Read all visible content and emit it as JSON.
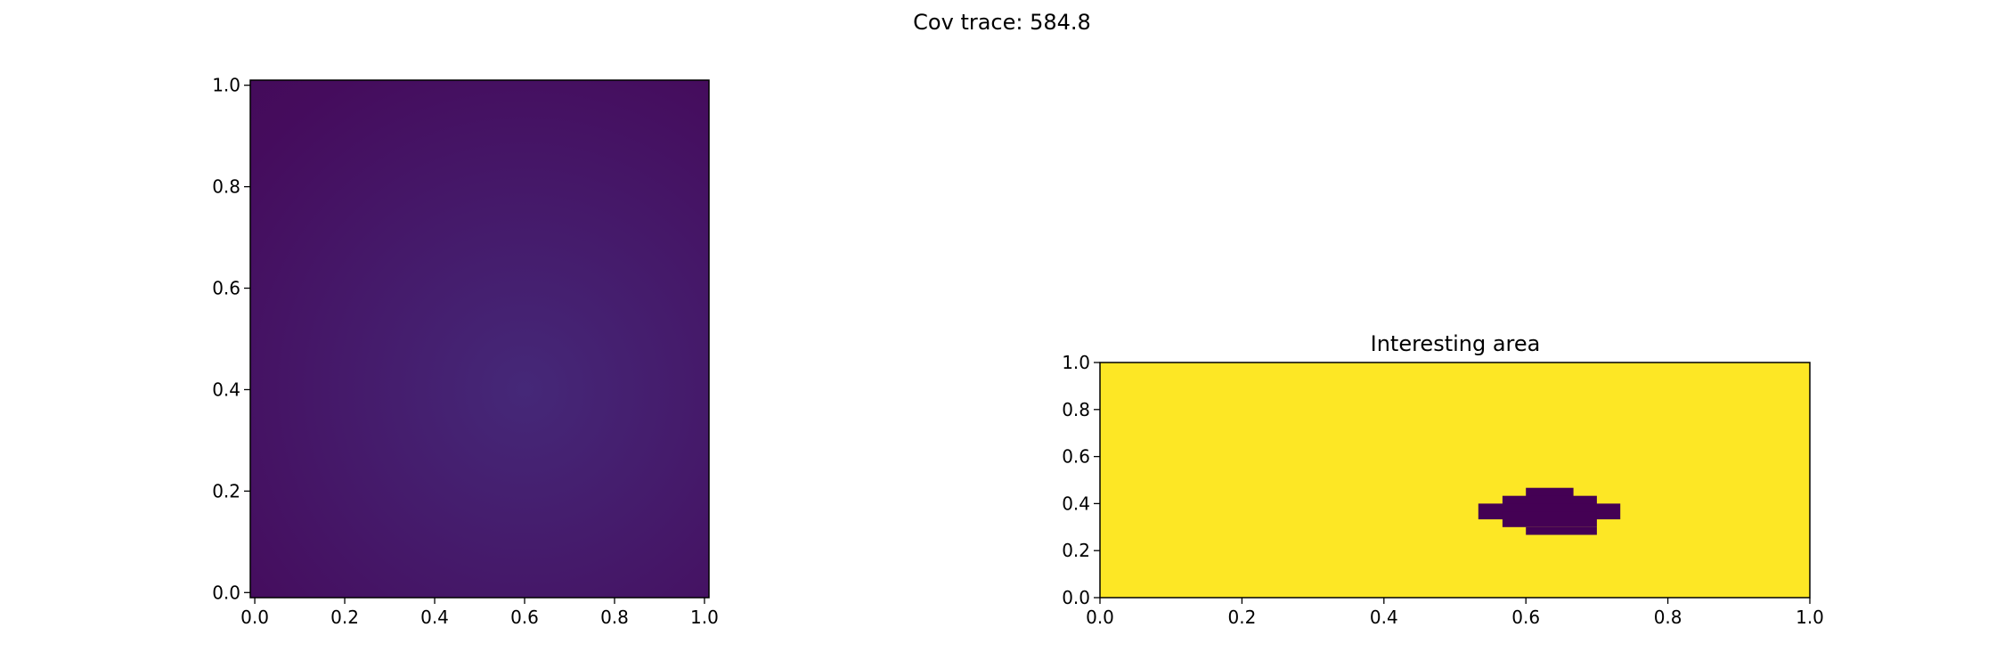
{
  "figure": {
    "suptitle": "Cov trace: 584.8"
  },
  "chart_data": [
    {
      "type": "heatmap",
      "title": "",
      "xlabel": "",
      "ylabel": "",
      "xlim": [
        -0.01,
        1.01
      ],
      "ylim": [
        -0.01,
        1.01
      ],
      "xticks": [
        "0.0",
        "0.2",
        "0.4",
        "0.6",
        "0.8",
        "1.0"
      ],
      "yticks": [
        "0.0",
        "0.2",
        "0.4",
        "0.6",
        "0.8",
        "1.0"
      ],
      "colormap": "viridis",
      "grid": false,
      "field": {
        "description_values": "smooth radial field, maximum near (0.6, 0.4)",
        "peak": [
          0.6,
          0.4
        ],
        "center_color": "#452878",
        "edge_color": "#450c5d",
        "corner_color": "#440a59"
      }
    },
    {
      "type": "heatmap",
      "title": "Interesting area",
      "xlabel": "",
      "ylabel": "",
      "xlim": [
        0.0,
        1.0
      ],
      "ylim": [
        0.0,
        1.0
      ],
      "xticks": [
        "0.0",
        "0.2",
        "0.4",
        "0.6",
        "0.8",
        "1.0"
      ],
      "yticks": [
        "0.0",
        "0.2",
        "0.4",
        "0.6",
        "0.8",
        "1.0"
      ],
      "colormap": "viridis",
      "grid": false,
      "background_value": 1,
      "background_color": "#fde725",
      "region_color": "#440154",
      "region_cells": [
        {
          "x0": 0.6,
          "x1": 0.667,
          "y0": 0.4,
          "y1": 0.467
        },
        {
          "x0": 0.567,
          "x1": 0.7,
          "y0": 0.367,
          "y1": 0.433
        },
        {
          "x0": 0.533,
          "x1": 0.733,
          "y0": 0.333,
          "y1": 0.4
        },
        {
          "x0": 0.567,
          "x1": 0.7,
          "y0": 0.3,
          "y1": 0.367
        },
        {
          "x0": 0.6,
          "x1": 0.7,
          "y0": 0.267,
          "y1": 0.3
        }
      ]
    }
  ]
}
